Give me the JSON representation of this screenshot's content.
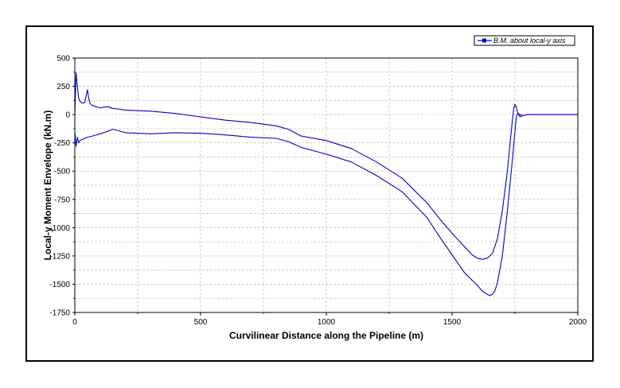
{
  "chart_data": {
    "type": "line",
    "xlabel": "Curvilinear Distance along the Pipeline (m)",
    "ylabel": "Local-y Moment Envelope (kN.m)",
    "xlim": [
      0,
      2000
    ],
    "ylim": [
      -1750,
      500
    ],
    "x_ticks": [
      0,
      500,
      1000,
      1500,
      2000
    ],
    "y_ticks": [
      500,
      250,
      0,
      -250,
      -500,
      -750,
      -1000,
      -1250,
      -1500,
      -1750
    ],
    "grid": true,
    "legend_position": "top-right",
    "series": [
      {
        "name": "B.M. about local-y axis",
        "color": "#0000cc",
        "envelope": "upper",
        "x": [
          0,
          5,
          10,
          15,
          20,
          25,
          30,
          40,
          50,
          55,
          60,
          70,
          100,
          130,
          150,
          170,
          200,
          300,
          400,
          500,
          600,
          700,
          800,
          850,
          900,
          1000,
          1100,
          1200,
          1300,
          1400,
          1450,
          1500,
          1550,
          1580,
          1600,
          1620,
          1640,
          1660,
          1680,
          1700,
          1720,
          1735,
          1745,
          1750,
          1755,
          1760,
          1770,
          1780,
          1800,
          2000
        ],
        "y": [
          0,
          370,
          250,
          150,
          120,
          110,
          100,
          110,
          220,
          150,
          100,
          80,
          60,
          70,
          55,
          50,
          40,
          30,
          10,
          -20,
          -50,
          -70,
          -100,
          -130,
          -190,
          -230,
          -300,
          -420,
          -560,
          -780,
          -920,
          -1050,
          -1170,
          -1240,
          -1270,
          -1280,
          -1270,
          -1230,
          -1100,
          -850,
          -500,
          -150,
          50,
          90,
          70,
          20,
          -20,
          -10,
          0,
          0
        ]
      },
      {
        "name": "",
        "color": "#0000cc",
        "envelope": "lower",
        "x": [
          0,
          5,
          10,
          15,
          20,
          30,
          50,
          70,
          100,
          130,
          150,
          170,
          200,
          300,
          400,
          500,
          600,
          700,
          800,
          850,
          900,
          1000,
          1100,
          1200,
          1300,
          1400,
          1450,
          1500,
          1550,
          1600,
          1620,
          1640,
          1650,
          1660,
          1670,
          1680,
          1700,
          1720,
          1740,
          1750,
          1755,
          1760,
          1770,
          1780,
          1800,
          2000
        ],
        "y": [
          -150,
          -280,
          -200,
          -250,
          -230,
          -220,
          -200,
          -190,
          -170,
          -150,
          -130,
          -140,
          -160,
          -170,
          -160,
          -165,
          -180,
          -200,
          -210,
          -240,
          -290,
          -350,
          -420,
          -540,
          -680,
          -910,
          -1080,
          -1240,
          -1400,
          -1510,
          -1560,
          -1590,
          -1600,
          -1590,
          -1560,
          -1490,
          -1250,
          -850,
          -400,
          -150,
          -30,
          10,
          0,
          -10,
          0,
          0
        ]
      }
    ]
  }
}
